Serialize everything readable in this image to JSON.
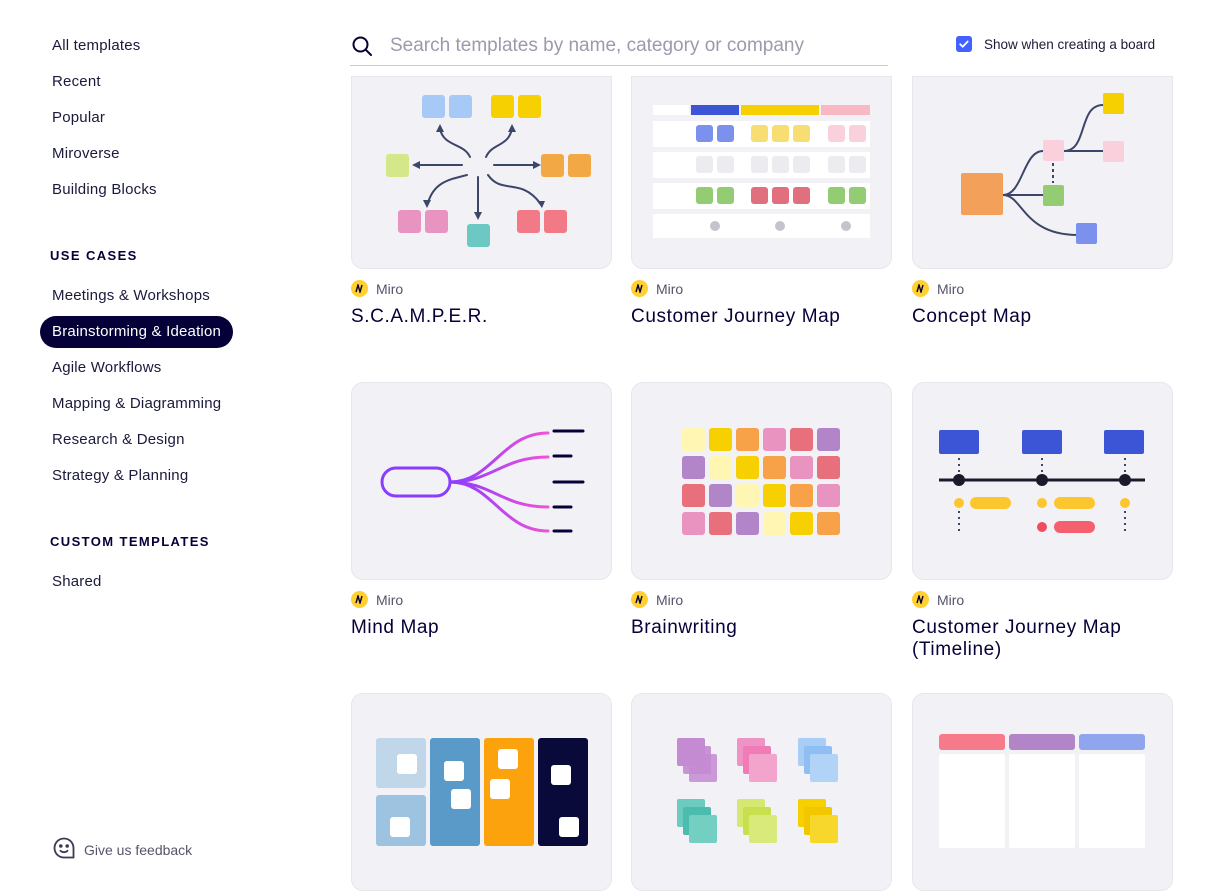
{
  "sidebar": {
    "items": [
      "All templates",
      "Recent",
      "Popular",
      "Miroverse",
      "Building Blocks"
    ],
    "use_cases_title": "USE CASES",
    "use_cases": [
      "Meetings & Workshops",
      "Brainstorming & Ideation",
      "Agile Workflows",
      "Mapping & Diagramming",
      "Research & Design",
      "Strategy & Planning"
    ],
    "active": "Brainstorming & Ideation",
    "custom_title": "CUSTOM TEMPLATES",
    "custom": [
      "Shared"
    ],
    "feedback_label": "Give us feedback"
  },
  "search": {
    "placeholder": "Search templates by name, category or company",
    "value": ""
  },
  "show_toggle": {
    "label": "Show when creating a board",
    "checked": true
  },
  "cards": [
    {
      "author": "Miro",
      "title": "S.C.A.M.P.E.R."
    },
    {
      "author": "Miro",
      "title": "Customer Journey Map"
    },
    {
      "author": "Miro",
      "title": "Concept Map"
    },
    {
      "author": "Miro",
      "title": "Mind Map"
    },
    {
      "author": "Miro",
      "title": "Brainwriting"
    },
    {
      "author": "Miro",
      "title": "Customer Journey Map (Timeline)"
    }
  ],
  "colors": {
    "accent": "#4262ff",
    "active_nav": "#050038",
    "miro_yellow": "#ffd02f"
  }
}
